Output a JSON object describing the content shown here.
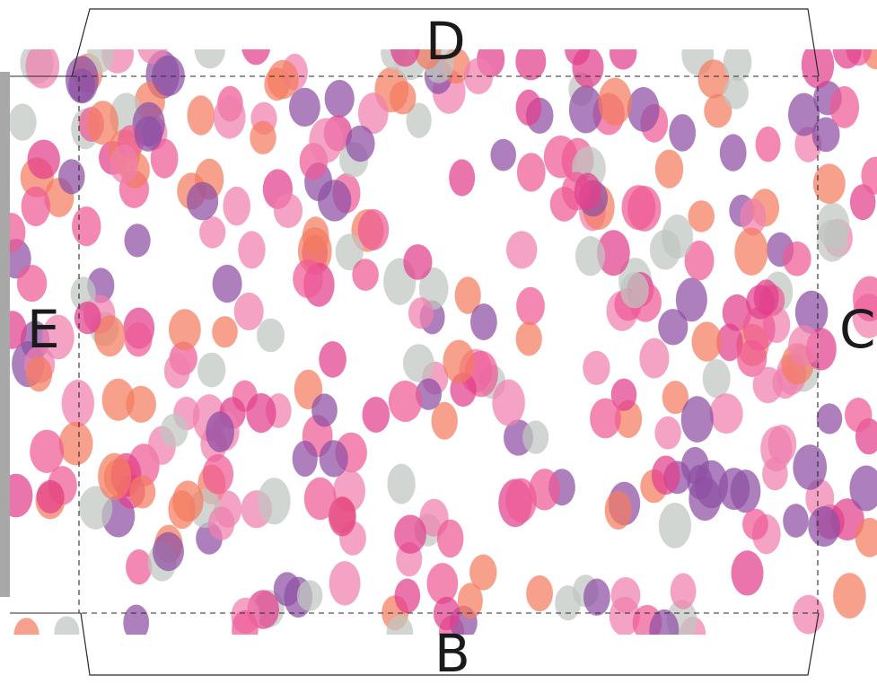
{
  "template": {
    "flaps": {
      "top": "D",
      "bottom": "B",
      "left": "E",
      "right": "C"
    },
    "pattern": {
      "name": "confetti-dots",
      "colors": [
        "#8e4fa3",
        "#e23e8c",
        "#f07fae",
        "#f47c5f",
        "#bfc6c1",
        "#ee5a96"
      ]
    },
    "fold_line_style": "dashed",
    "cut_line_style": "solid"
  }
}
